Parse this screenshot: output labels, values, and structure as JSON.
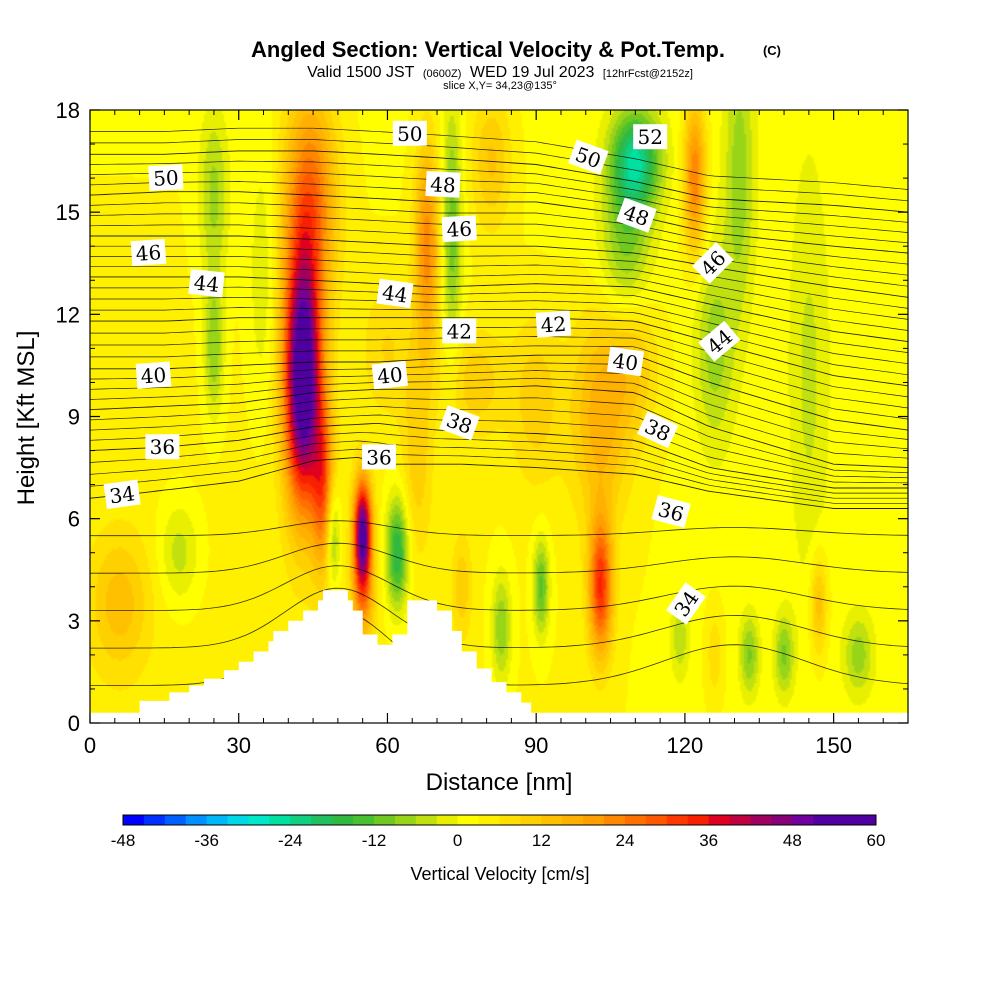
{
  "title": {
    "main": "Angled Section: Vertical Velocity & Pot.Temp.",
    "copyright": "(C)",
    "valid_prefix": "Valid 1500 JST",
    "valid_utc": "(0600Z)",
    "valid_date": "WED 19 Jul 2023",
    "forecast": "[12hrFcst@2152z]",
    "slice": "slice X,Y= 34,23@135°"
  },
  "chart_data": {
    "type": "heatmap",
    "xlabel": "Distance [nm]",
    "ylabel": "Height [Kft MSL]",
    "xlim": [
      0,
      165
    ],
    "ylim": [
      0,
      18
    ],
    "x_ticks": [
      "0",
      "30",
      "60",
      "90",
      "120",
      "150"
    ],
    "x_tick_values": [
      0,
      30,
      60,
      90,
      120,
      150
    ],
    "y_ticks": [
      "0",
      "3",
      "6",
      "9",
      "12",
      "15",
      "18"
    ],
    "y_tick_values": [
      0,
      3,
      6,
      9,
      12,
      15,
      18
    ],
    "colorbar": {
      "label": "Vertical Velocity [cm/s]",
      "tick_labels": [
        "-48",
        "-36",
        "-24",
        "-12",
        "0",
        "12",
        "24",
        "36",
        "48",
        "60"
      ],
      "tick_values": [
        -48,
        -36,
        -24,
        -12,
        0,
        12,
        24,
        36,
        48,
        60
      ],
      "step": 3,
      "colors": [
        "#0000ff",
        "#0030ff",
        "#0060ff",
        "#0090ff",
        "#00b8f8",
        "#00d8e8",
        "#00e8c8",
        "#00e0a0",
        "#10d080",
        "#20c060",
        "#30b840",
        "#48c030",
        "#70c820",
        "#98d418",
        "#c0e010",
        "#e8f000",
        "#ffff00",
        "#fff000",
        "#ffe000",
        "#ffd000",
        "#ffc000",
        "#ffb000",
        "#ffa000",
        "#ff8800",
        "#ff7000",
        "#ff5800",
        "#ff3800",
        "#f82000",
        "#e00020",
        "#c00040",
        "#a00060",
        "#880078",
        "#7000a0",
        "#5000a0"
      ]
    },
    "terrain_profile": [
      [
        0,
        0.3
      ],
      [
        10,
        0.3
      ],
      [
        10,
        0.65
      ],
      [
        13,
        0.65
      ],
      [
        13,
        0.65
      ],
      [
        16,
        0.65
      ],
      [
        16,
        0.9
      ],
      [
        20,
        0.9
      ],
      [
        20,
        1.1
      ],
      [
        23,
        1.1
      ],
      [
        23,
        1.3
      ],
      [
        27,
        1.3
      ],
      [
        27,
        1.55
      ],
      [
        30,
        1.55
      ],
      [
        30,
        1.8
      ],
      [
        33,
        1.8
      ],
      [
        33,
        2.1
      ],
      [
        36,
        2.1
      ],
      [
        36,
        2.4
      ],
      [
        37,
        2.4
      ],
      [
        37,
        2.7
      ],
      [
        40,
        2.7
      ],
      [
        40,
        3.0
      ],
      [
        43,
        3.0
      ],
      [
        43,
        3.3
      ],
      [
        46,
        3.3
      ],
      [
        46,
        3.6
      ],
      [
        47,
        3.6
      ],
      [
        47,
        3.9
      ],
      [
        52,
        3.9
      ],
      [
        52,
        3.6
      ],
      [
        53,
        3.6
      ],
      [
        53,
        3.3
      ],
      [
        55,
        3.3
      ],
      [
        55,
        2.6
      ],
      [
        58,
        2.6
      ],
      [
        58,
        2.3
      ],
      [
        61,
        2.3
      ],
      [
        61,
        2.6
      ],
      [
        64,
        2.6
      ],
      [
        64,
        3.6
      ],
      [
        70,
        3.6
      ],
      [
        70,
        3.3
      ],
      [
        73,
        3.3
      ],
      [
        73,
        2.7
      ],
      [
        75,
        2.7
      ],
      [
        75,
        2.1
      ],
      [
        78,
        2.1
      ],
      [
        78,
        1.6
      ],
      [
        81,
        1.6
      ],
      [
        81,
        1.2
      ],
      [
        84,
        1.2
      ],
      [
        84,
        0.9
      ],
      [
        87,
        0.9
      ],
      [
        87,
        0.6
      ],
      [
        89,
        0.6
      ],
      [
        89,
        0.3
      ],
      [
        165,
        0.3
      ]
    ],
    "velocity_features": [
      {
        "x": 0,
        "z": 0,
        "sx": 200,
        "sz": 30,
        "w": 4
      },
      {
        "x": 43,
        "z": 10,
        "sx": 3.5,
        "sz": 3.5,
        "w": 52
      },
      {
        "x": 42.5,
        "z": 12.5,
        "sx": 5,
        "sz": 5,
        "w": 10
      },
      {
        "x": 45,
        "z": 15.5,
        "sx": 5,
        "sz": 3,
        "w": 18
      },
      {
        "x": 47,
        "z": 7,
        "sx": 2.2,
        "sz": 2.5,
        "w": 22
      },
      {
        "x": 55,
        "z": 5.5,
        "sx": 1.8,
        "sz": 1.6,
        "w": 52
      },
      {
        "x": 55,
        "z": 3.5,
        "sx": 2.5,
        "sz": 1.2,
        "w": 12
      },
      {
        "x": 49,
        "z": 5.5,
        "sx": 1.4,
        "sz": 1.5,
        "w": -14
      },
      {
        "x": 62,
        "z": 5,
        "sx": 2.2,
        "sz": 1.6,
        "w": -22
      },
      {
        "x": 68,
        "z": 14,
        "sx": 2.5,
        "sz": 3,
        "w": 20
      },
      {
        "x": 73,
        "z": 14.5,
        "sx": 2,
        "sz": 3.5,
        "w": -14
      },
      {
        "x": 81,
        "z": 16.5,
        "sx": 4,
        "sz": 2,
        "w": 10
      },
      {
        "x": 66,
        "z": 8,
        "sx": 3,
        "sz": 3,
        "w": 8
      },
      {
        "x": 78,
        "z": 10,
        "sx": 6,
        "sz": 1.6,
        "w": 8
      },
      {
        "x": 90,
        "z": 9.5,
        "sx": 5,
        "sz": 2.5,
        "w": 8
      },
      {
        "x": 103,
        "z": 4,
        "sx": 2.4,
        "sz": 2,
        "w": 30
      },
      {
        "x": 103,
        "z": 9,
        "sx": 6,
        "sz": 3,
        "w": 14
      },
      {
        "x": 110,
        "z": 10.5,
        "sx": 5,
        "sz": 2,
        "w": 8
      },
      {
        "x": 83,
        "z": 2.8,
        "sx": 2,
        "sz": 1.6,
        "w": -12
      },
      {
        "x": 91,
        "z": 4,
        "sx": 1.6,
        "sz": 1.4,
        "w": -16
      },
      {
        "x": 75,
        "z": 4,
        "sx": 2,
        "sz": 1.5,
        "w": 8
      },
      {
        "x": 110,
        "z": 16.5,
        "sx": 5,
        "sz": 1.5,
        "w": -26
      },
      {
        "x": 108,
        "z": 14,
        "sx": 5,
        "sz": 2,
        "w": -12
      },
      {
        "x": 122,
        "z": 16,
        "sx": 2.2,
        "sz": 2.2,
        "w": 22
      },
      {
        "x": 131,
        "z": 16,
        "sx": 3,
        "sz": 4,
        "w": -10
      },
      {
        "x": 126,
        "z": 11,
        "sx": 4,
        "sz": 3,
        "w": -10
      },
      {
        "x": 145,
        "z": 10,
        "sx": 4,
        "sz": 6,
        "w": -6
      },
      {
        "x": 147,
        "z": 3.5,
        "sx": 1.7,
        "sz": 1.5,
        "w": 12
      },
      {
        "x": 133,
        "z": 2,
        "sx": 2,
        "sz": 1.2,
        "w": -12
      },
      {
        "x": 140,
        "z": 2,
        "sx": 2,
        "sz": 1.2,
        "w": -12
      },
      {
        "x": 155,
        "z": 2,
        "sx": 3,
        "sz": 1.2,
        "w": -10
      },
      {
        "x": 6,
        "z": 3.5,
        "sx": 6,
        "sz": 2,
        "w": 10
      },
      {
        "x": 25,
        "z": 11,
        "sx": 2,
        "sz": 2,
        "w": -12
      },
      {
        "x": 25,
        "z": 15.5,
        "sx": 3,
        "sz": 2.5,
        "w": -10
      },
      {
        "x": 18,
        "z": 5,
        "sx": 4,
        "sz": 1.5,
        "w": -8
      },
      {
        "x": 60,
        "z": 11,
        "sx": 5,
        "sz": 2,
        "w": 6
      },
      {
        "x": 35,
        "z": 13,
        "sx": 3,
        "sz": 4,
        "w": -6
      },
      {
        "x": 119,
        "z": 2.5,
        "sx": 2,
        "sz": 1.3,
        "w": -8
      },
      {
        "x": 126,
        "z": 2,
        "sx": 1.5,
        "sz": 1.2,
        "w": 6
      }
    ],
    "theta_contours": [
      {
        "level": 34,
        "points": [
          [
            0,
            6.6
          ],
          [
            10,
            6.75
          ],
          [
            30,
            7.1
          ],
          [
            45,
            7.7
          ],
          [
            54,
            7.8
          ],
          [
            60,
            7.6
          ],
          [
            75,
            7.6
          ],
          [
            90,
            7.5
          ],
          [
            110,
            7.3
          ],
          [
            125,
            6.8
          ],
          [
            150,
            6.3
          ],
          [
            165,
            6.3
          ]
        ],
        "label_pos": [
          6.5,
          6.7
        ]
      },
      {
        "level": 36,
        "points": [
          [
            0,
            8.0
          ],
          [
            15,
            8.1
          ],
          [
            30,
            8.3
          ],
          [
            45,
            8.7
          ],
          [
            58,
            8.8
          ],
          [
            70,
            8.6
          ],
          [
            90,
            8.5
          ],
          [
            110,
            8.3
          ],
          [
            125,
            7.5
          ],
          [
            150,
            6.9
          ],
          [
            165,
            6.9
          ]
        ],
        "label_pos": [
          14.6,
          8.1
        ]
      },
      {
        "level": 38,
        "points": [
          [
            0,
            9.2
          ],
          [
            15,
            9.3
          ],
          [
            30,
            9.4
          ],
          [
            45,
            9.7
          ],
          [
            58,
            9.8
          ],
          [
            70,
            9.8
          ],
          [
            90,
            9.9
          ],
          [
            110,
            9.7
          ],
          [
            125,
            8.7
          ],
          [
            150,
            7.6
          ],
          [
            165,
            7.5
          ]
        ],
        "label_pos": [
          0,
          0
        ]
      },
      {
        "level": 40,
        "points": [
          [
            0,
            10.4
          ],
          [
            15,
            10.4
          ],
          [
            30,
            10.5
          ],
          [
            45,
            10.6
          ],
          [
            58,
            10.6
          ],
          [
            70,
            10.7
          ],
          [
            90,
            10.8
          ],
          [
            110,
            10.8
          ],
          [
            125,
            10.0
          ],
          [
            150,
            8.9
          ],
          [
            165,
            8.6
          ]
        ],
        "label_pos": [
          12.8,
          10.2
        ]
      },
      {
        "level": 42,
        "points": [
          [
            0,
            11.8
          ],
          [
            15,
            11.8
          ],
          [
            30,
            11.9
          ],
          [
            45,
            11.9
          ],
          [
            58,
            11.9
          ],
          [
            70,
            11.9
          ],
          [
            90,
            11.9
          ],
          [
            110,
            11.8
          ],
          [
            125,
            11.2
          ],
          [
            150,
            10.2
          ],
          [
            165,
            9.9
          ]
        ],
        "label_pos": [
          0,
          0
        ]
      },
      {
        "level": 44,
        "points": [
          [
            0,
            13.1
          ],
          [
            15,
            13.1
          ],
          [
            30,
            13.1
          ],
          [
            45,
            13.0
          ],
          [
            58,
            12.9
          ],
          [
            70,
            12.8
          ],
          [
            90,
            12.9
          ],
          [
            110,
            12.8
          ],
          [
            125,
            12.3
          ],
          [
            150,
            11.5
          ],
          [
            165,
            11.2
          ]
        ],
        "label_pos": [
          23.5,
          12.9
        ]
      },
      {
        "level": 46,
        "points": [
          [
            0,
            14.3
          ],
          [
            15,
            14.3
          ],
          [
            30,
            14.3
          ],
          [
            45,
            14.2
          ],
          [
            58,
            14.1
          ],
          [
            70,
            14.0
          ],
          [
            90,
            14.0
          ],
          [
            110,
            13.8
          ],
          [
            125,
            13.4
          ],
          [
            150,
            12.8
          ],
          [
            165,
            12.5
          ]
        ],
        "label_pos": [
          11.8,
          13.8
        ]
      },
      {
        "level": 48,
        "points": [
          [
            0,
            15.5
          ],
          [
            15,
            15.6
          ],
          [
            30,
            15.6
          ],
          [
            45,
            15.5
          ],
          [
            58,
            15.4
          ],
          [
            70,
            15.3
          ],
          [
            90,
            15.3
          ],
          [
            110,
            14.9
          ],
          [
            125,
            14.4
          ],
          [
            150,
            14.0
          ],
          [
            165,
            13.8
          ]
        ],
        "label_pos": [
          0,
          0
        ]
      },
      {
        "level": 50,
        "points": [
          [
            0,
            16.7
          ],
          [
            15,
            16.7
          ],
          [
            30,
            16.8
          ],
          [
            45,
            16.8
          ],
          [
            58,
            16.7
          ],
          [
            70,
            16.6
          ],
          [
            90,
            16.4
          ],
          [
            110,
            15.9
          ],
          [
            125,
            15.4
          ],
          [
            150,
            15.2
          ],
          [
            165,
            15.0
          ]
        ],
        "label_pos": [
          15.3,
          16.0
        ]
      }
    ],
    "contour_labels": [
      {
        "text": "50",
        "x": 15.3,
        "y": 16.0,
        "angle": -3
      },
      {
        "text": "46",
        "x": 11.8,
        "y": 13.8,
        "angle": -4
      },
      {
        "text": "44",
        "x": 23.5,
        "y": 12.9,
        "angle": 6
      },
      {
        "text": "40",
        "x": 12.8,
        "y": 10.2,
        "angle": -4
      },
      {
        "text": "36",
        "x": 14.6,
        "y": 8.1,
        "angle": 0
      },
      {
        "text": "34",
        "x": 6.5,
        "y": 6.7,
        "angle": -8
      },
      {
        "text": "50",
        "x": 64.5,
        "y": 17.3,
        "angle": 0
      },
      {
        "text": "48",
        "x": 71.2,
        "y": 15.8,
        "angle": 3
      },
      {
        "text": "46",
        "x": 74.5,
        "y": 14.5,
        "angle": -3
      },
      {
        "text": "44",
        "x": 61.5,
        "y": 12.6,
        "angle": 8
      },
      {
        "text": "42",
        "x": 74.5,
        "y": 11.5,
        "angle": 0
      },
      {
        "text": "40",
        "x": 60.5,
        "y": 10.2,
        "angle": -6
      },
      {
        "text": "38",
        "x": 74.5,
        "y": 8.8,
        "angle": 20
      },
      {
        "text": "36",
        "x": 58.3,
        "y": 7.8,
        "angle": 0
      },
      {
        "text": "52",
        "x": 113.0,
        "y": 17.2,
        "angle": 0
      },
      {
        "text": "50",
        "x": 100.5,
        "y": 16.6,
        "angle": 20
      },
      {
        "text": "48",
        "x": 110.2,
        "y": 14.9,
        "angle": 20
      },
      {
        "text": "46",
        "x": 125.7,
        "y": 13.5,
        "angle": -45
      },
      {
        "text": "44",
        "x": 127.0,
        "y": 11.2,
        "angle": -40
      },
      {
        "text": "42",
        "x": 93.5,
        "y": 11.7,
        "angle": -4
      },
      {
        "text": "40",
        "x": 108.0,
        "y": 10.6,
        "angle": 8
      },
      {
        "text": "38",
        "x": 114.5,
        "y": 8.6,
        "angle": 25
      },
      {
        "text": "36",
        "x": 117.2,
        "y": 6.2,
        "angle": 15
      },
      {
        "text": "34",
        "x": 120.3,
        "y": 3.5,
        "angle": -55
      }
    ]
  }
}
